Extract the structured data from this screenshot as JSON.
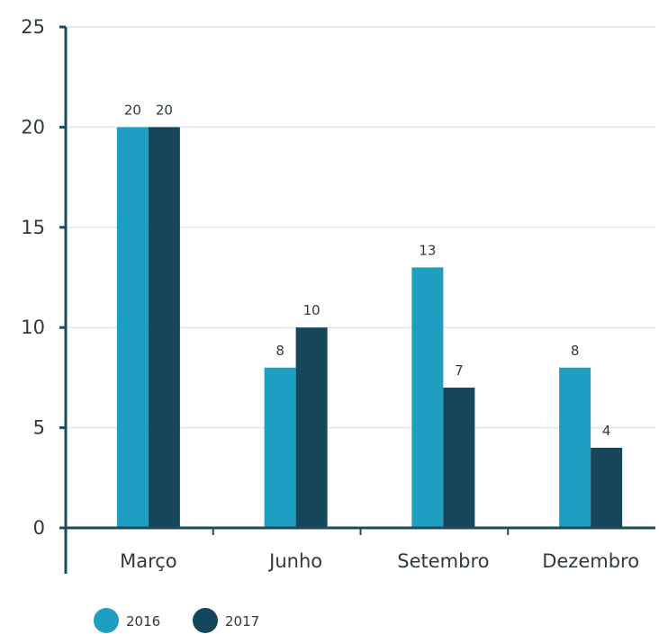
{
  "chart_data": {
    "type": "bar",
    "categories": [
      "Março",
      "Junho",
      "Setembro",
      "Dezembro"
    ],
    "series": [
      {
        "name": "2016",
        "values": [
          20,
          8,
          13,
          8
        ],
        "color": "#1e9ec0"
      },
      {
        "name": "2017",
        "values": [
          20,
          10,
          7,
          4
        ],
        "color": "#15465a"
      }
    ],
    "yticks": [
      "0",
      "5",
      "10",
      "15",
      "20",
      "25"
    ],
    "ylim": [
      0,
      25
    ],
    "grid": true,
    "legend_position": "bottom-left",
    "title": "",
    "xlabel": "",
    "ylabel": ""
  }
}
